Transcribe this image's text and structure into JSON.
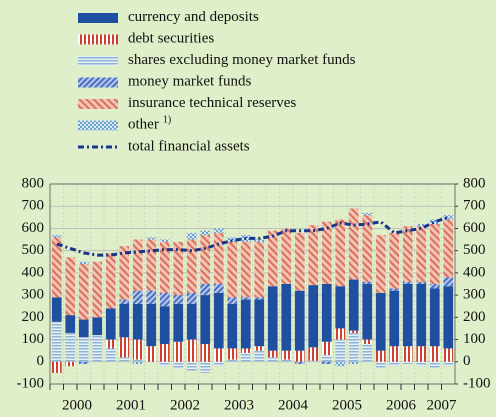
{
  "chart_data": {
    "type": "stacked-bar-line",
    "categories": [
      null,
      null,
      null,
      null,
      null,
      null,
      null,
      null,
      null,
      null,
      null,
      null,
      null,
      null,
      null,
      null,
      null,
      null,
      null,
      null,
      null,
      null,
      null,
      null,
      null,
      null,
      null,
      null,
      null,
      null
    ],
    "xlabels": [
      "2000",
      "2001",
      "2002",
      "2003",
      "2004",
      "2005",
      "2006",
      "2007"
    ],
    "series": [
      {
        "name": "currency and deposits",
        "color": "#1f4fa0",
        "pattern": "solid",
        "stack_order": 2,
        "values": [
          110,
          80,
          80,
          80,
          140,
          150,
          160,
          190,
          170,
          170,
          160,
          220,
          250,
          200,
          220,
          210,
          290,
          300,
          270,
          280,
          260,
          190,
          230,
          250,
          260,
          250,
          280,
          280,
          260,
          280
        ]
      },
      {
        "name": "debt securities",
        "color": "#d04030",
        "pattern": "vertical",
        "stack_order": 1,
        "values": [
          -50,
          -20,
          0,
          0,
          40,
          90,
          90,
          70,
          80,
          90,
          100,
          80,
          60,
          50,
          20,
          20,
          30,
          40,
          50,
          60,
          60,
          50,
          10,
          20,
          50,
          70,
          70,
          70,
          70,
          60
        ]
      },
      {
        "name": "shares excluding money market funds",
        "color": "#8fb4d4",
        "pattern": "horizontal",
        "stack_order": 0,
        "values": [
          180,
          130,
          110,
          120,
          60,
          20,
          10,
          0,
          -20,
          -30,
          -40,
          -50,
          -20,
          10,
          40,
          50,
          20,
          10,
          0,
          5,
          30,
          100,
          130,
          80,
          -30,
          -20,
          -10,
          -20,
          -30,
          -20
        ]
      },
      {
        "name": "money market funds",
        "color": "#4a6ec0",
        "pattern": "diagonal",
        "stack_order": 3,
        "values": [
          0,
          0,
          -10,
          0,
          0,
          20,
          60,
          60,
          60,
          40,
          50,
          50,
          40,
          30,
          10,
          10,
          0,
          0,
          -10,
          0,
          -10,
          0,
          0,
          10,
          0,
          10,
          10,
          10,
          20,
          40
        ]
      },
      {
        "name": "insurance technical reserves",
        "color": "#d9705c",
        "pattern": "diagonal-wide",
        "stack_order": 4,
        "values": [
          270,
          260,
          250,
          250,
          250,
          240,
          230,
          230,
          230,
          240,
          240,
          220,
          230,
          250,
          250,
          250,
          250,
          250,
          260,
          270,
          280,
          300,
          320,
          300,
          260,
          250,
          250,
          250,
          270,
          260
        ]
      },
      {
        "name": "other",
        "color": "#6aa3cc",
        "pattern": "check",
        "stack_order": 5,
        "superscript": "1)",
        "values": [
          10,
          0,
          10,
          0,
          0,
          0,
          -10,
          10,
          10,
          0,
          30,
          20,
          20,
          20,
          30,
          10,
          0,
          0,
          0,
          0,
          0,
          -20,
          -10,
          10,
          0,
          0,
          0,
          10,
          20,
          20
        ]
      }
    ],
    "line": {
      "name": "total financial assets",
      "color": "#17358a",
      "values": [
        530,
        510,
        490,
        480,
        480,
        490,
        495,
        500,
        505,
        505,
        500,
        510,
        530,
        545,
        555,
        555,
        565,
        590,
        590,
        590,
        600,
        625,
        615,
        620,
        630,
        580,
        590,
        600,
        630,
        650
      ]
    },
    "ylim": [
      -100,
      800
    ],
    "yticks": [
      -100,
      0,
      100,
      200,
      300,
      400,
      500,
      600,
      700,
      800
    ],
    "y2lim": [
      -100,
      800
    ],
    "y2ticks": [
      -100,
      0,
      100,
      200,
      300,
      400,
      500,
      600,
      700,
      800
    ],
    "grid": true
  }
}
